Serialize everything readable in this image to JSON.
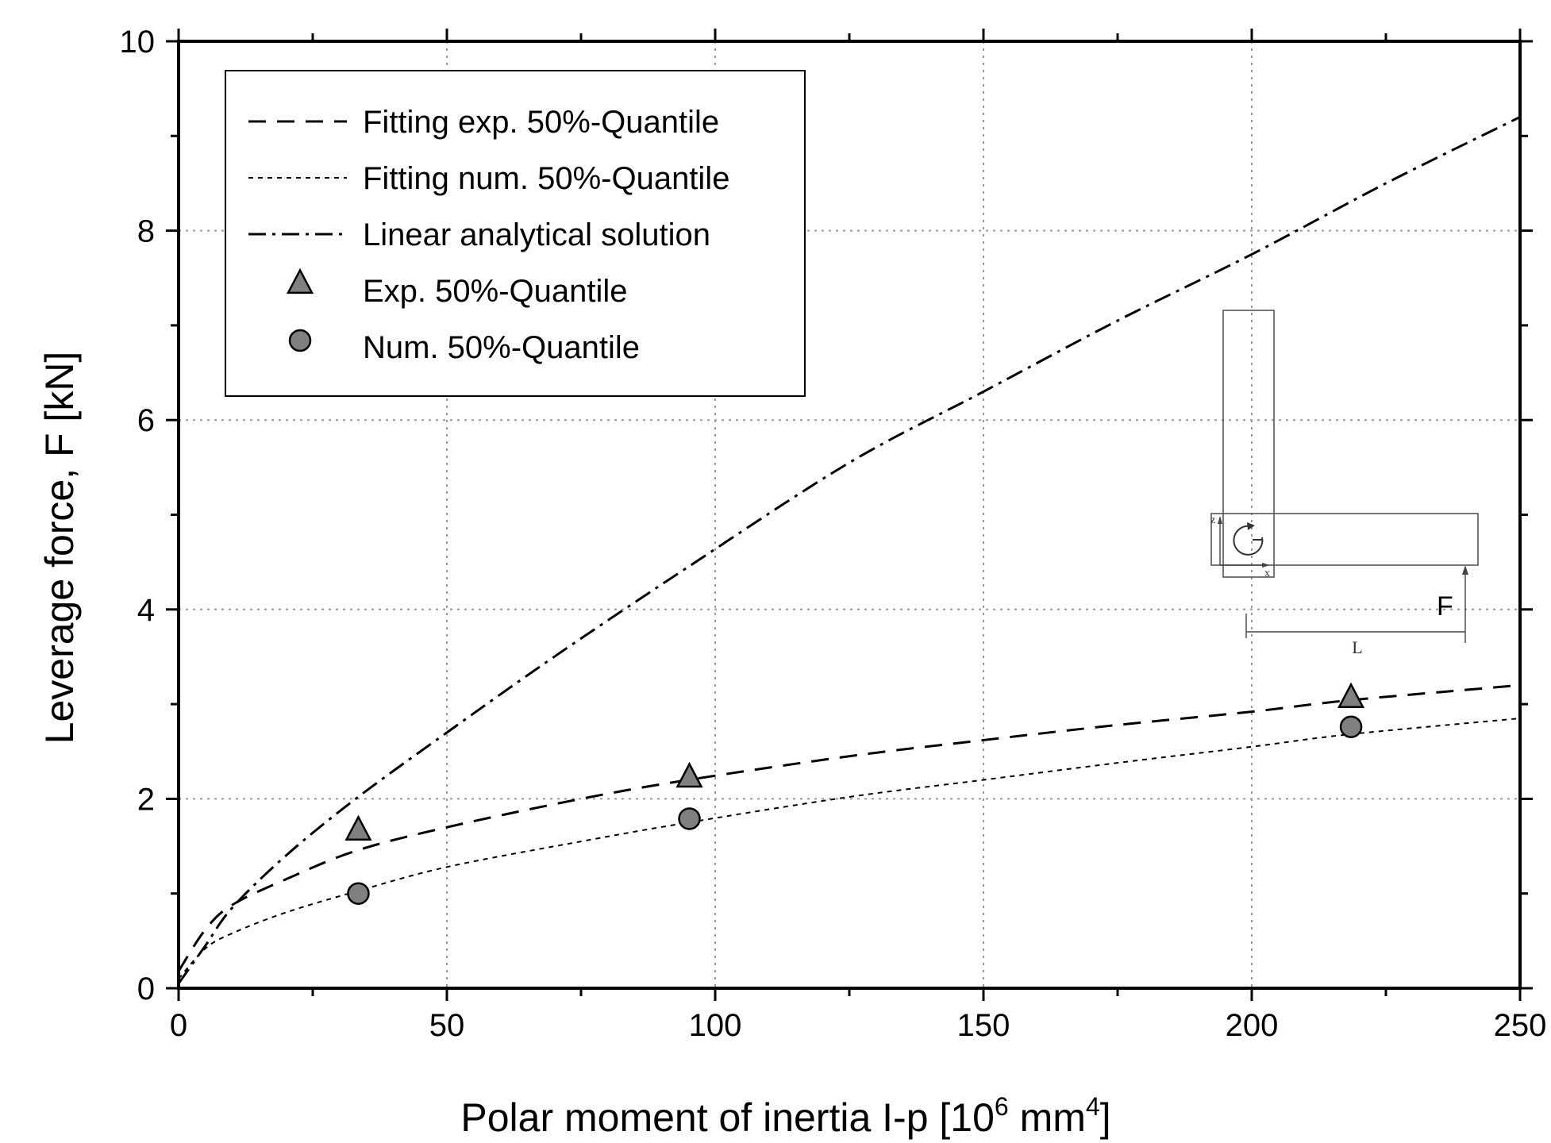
{
  "chart_data": {
    "type": "scatter",
    "title": "",
    "xlabel": "Polar moment of inertia I-p [10",
    "xlabel_exp1": "6",
    "xlabel_mid": " mm",
    "xlabel_exp2": "4",
    "xlabel_end": "]",
    "ylabel": "Leverage force, F [kN]",
    "xlim": [
      0,
      250
    ],
    "ylim": [
      0,
      10
    ],
    "xticks": [
      0,
      50,
      100,
      150,
      200,
      250
    ],
    "xtick_labels": [
      "0",
      "50",
      "100",
      "150",
      "200",
      "250"
    ],
    "yticks": [
      0,
      2,
      4,
      6,
      8,
      10
    ],
    "ytick_labels": [
      "0",
      "2",
      "4",
      "6",
      "8",
      "10"
    ],
    "grid": true,
    "legend_position": "top-left",
    "series": [
      {
        "name": "Fitting exp.  50%-Quantile",
        "kind": "line",
        "style": "dashed",
        "x": [
          0,
          5,
          10,
          20,
          33,
          50,
          75,
          95,
          125,
          150,
          175,
          200,
          218,
          250
        ],
        "y": [
          0.18,
          0.62,
          0.88,
          1.15,
          1.45,
          1.7,
          2.0,
          2.2,
          2.45,
          2.62,
          2.78,
          2.92,
          3.04,
          3.2
        ]
      },
      {
        "name": "Fitting num. 50%-Quantile",
        "kind": "line",
        "style": "dotted",
        "x": [
          0,
          5,
          10,
          20,
          33,
          50,
          75,
          95,
          125,
          150,
          175,
          200,
          218,
          250
        ],
        "y": [
          0.1,
          0.42,
          0.58,
          0.8,
          1.02,
          1.28,
          1.55,
          1.75,
          2.02,
          2.2,
          2.38,
          2.55,
          2.68,
          2.85
        ]
      },
      {
        "name": "Linear analytical solution",
        "kind": "line",
        "style": "dash-dot",
        "x": [
          0,
          5,
          10,
          20,
          33,
          50,
          70,
          95,
          125,
          150,
          175,
          200,
          225,
          250
        ],
        "y": [
          0.05,
          0.45,
          0.85,
          1.4,
          2.0,
          2.7,
          3.5,
          4.45,
          5.55,
          6.3,
          7.05,
          7.75,
          8.5,
          9.2
        ]
      },
      {
        "name": "Exp.  50%-Quantile",
        "kind": "points",
        "marker": "triangle",
        "x": [
          33.5,
          95.2,
          218.5
        ],
        "y": [
          1.66,
          2.22,
          3.06
        ]
      },
      {
        "name": "Num. 50%-Quantile",
        "kind": "points",
        "marker": "circle",
        "x": [
          33.5,
          95.2,
          218.5
        ],
        "y": [
          1.0,
          1.79,
          2.76
        ]
      }
    ],
    "inset_labels": {
      "z": "z",
      "x": "x",
      "force": "F",
      "length": "L"
    },
    "colors": {
      "marker_fill": "#808080",
      "line": "#000000"
    }
  }
}
